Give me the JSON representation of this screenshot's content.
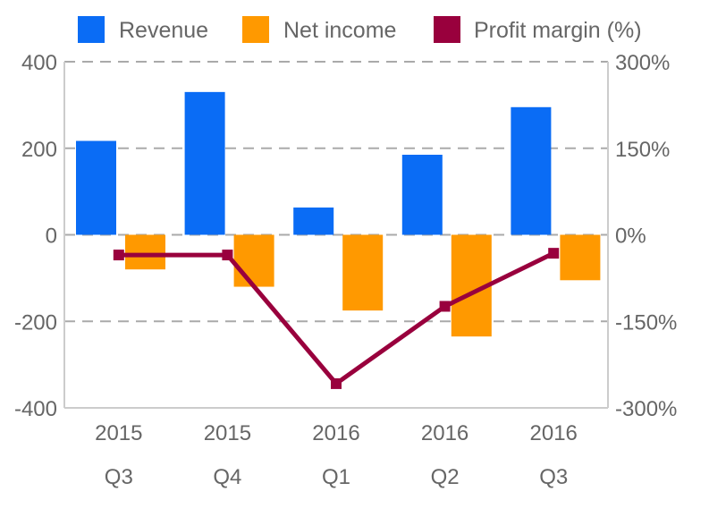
{
  "chart_data": {
    "type": "bar",
    "categories": [
      [
        "2015",
        "Q3"
      ],
      [
        "2015",
        "Q4"
      ],
      [
        "2016",
        "Q1"
      ],
      [
        "2016",
        "Q2"
      ],
      [
        "2016",
        "Q3"
      ]
    ],
    "series": [
      {
        "name": "Revenue",
        "type": "bar",
        "axis": "left",
        "color": "#0a6cf5",
        "values": [
          217,
          330,
          63,
          185,
          295
        ]
      },
      {
        "name": "Net income",
        "type": "bar",
        "axis": "left",
        "color": "#ff9900",
        "values": [
          -80,
          -120,
          -175,
          -235,
          -105
        ]
      },
      {
        "name": "Profit margin (%)",
        "type": "line",
        "axis": "right",
        "color": "#99003d",
        "values": [
          -35,
          -35,
          -258,
          -124,
          -32
        ]
      }
    ],
    "y_left": {
      "min": -400,
      "max": 400,
      "ticks": [
        400,
        200,
        0,
        -200,
        -400
      ],
      "tick_labels": [
        "400",
        "200",
        "0",
        "-200",
        "-400"
      ]
    },
    "y_right": {
      "min": -300,
      "max": 300,
      "ticks": [
        300,
        150,
        0,
        -150,
        -300
      ],
      "tick_labels": [
        "300%",
        "150%",
        "0%",
        "-150%",
        "-300%"
      ]
    },
    "grid": true,
    "legend_position": "top"
  }
}
